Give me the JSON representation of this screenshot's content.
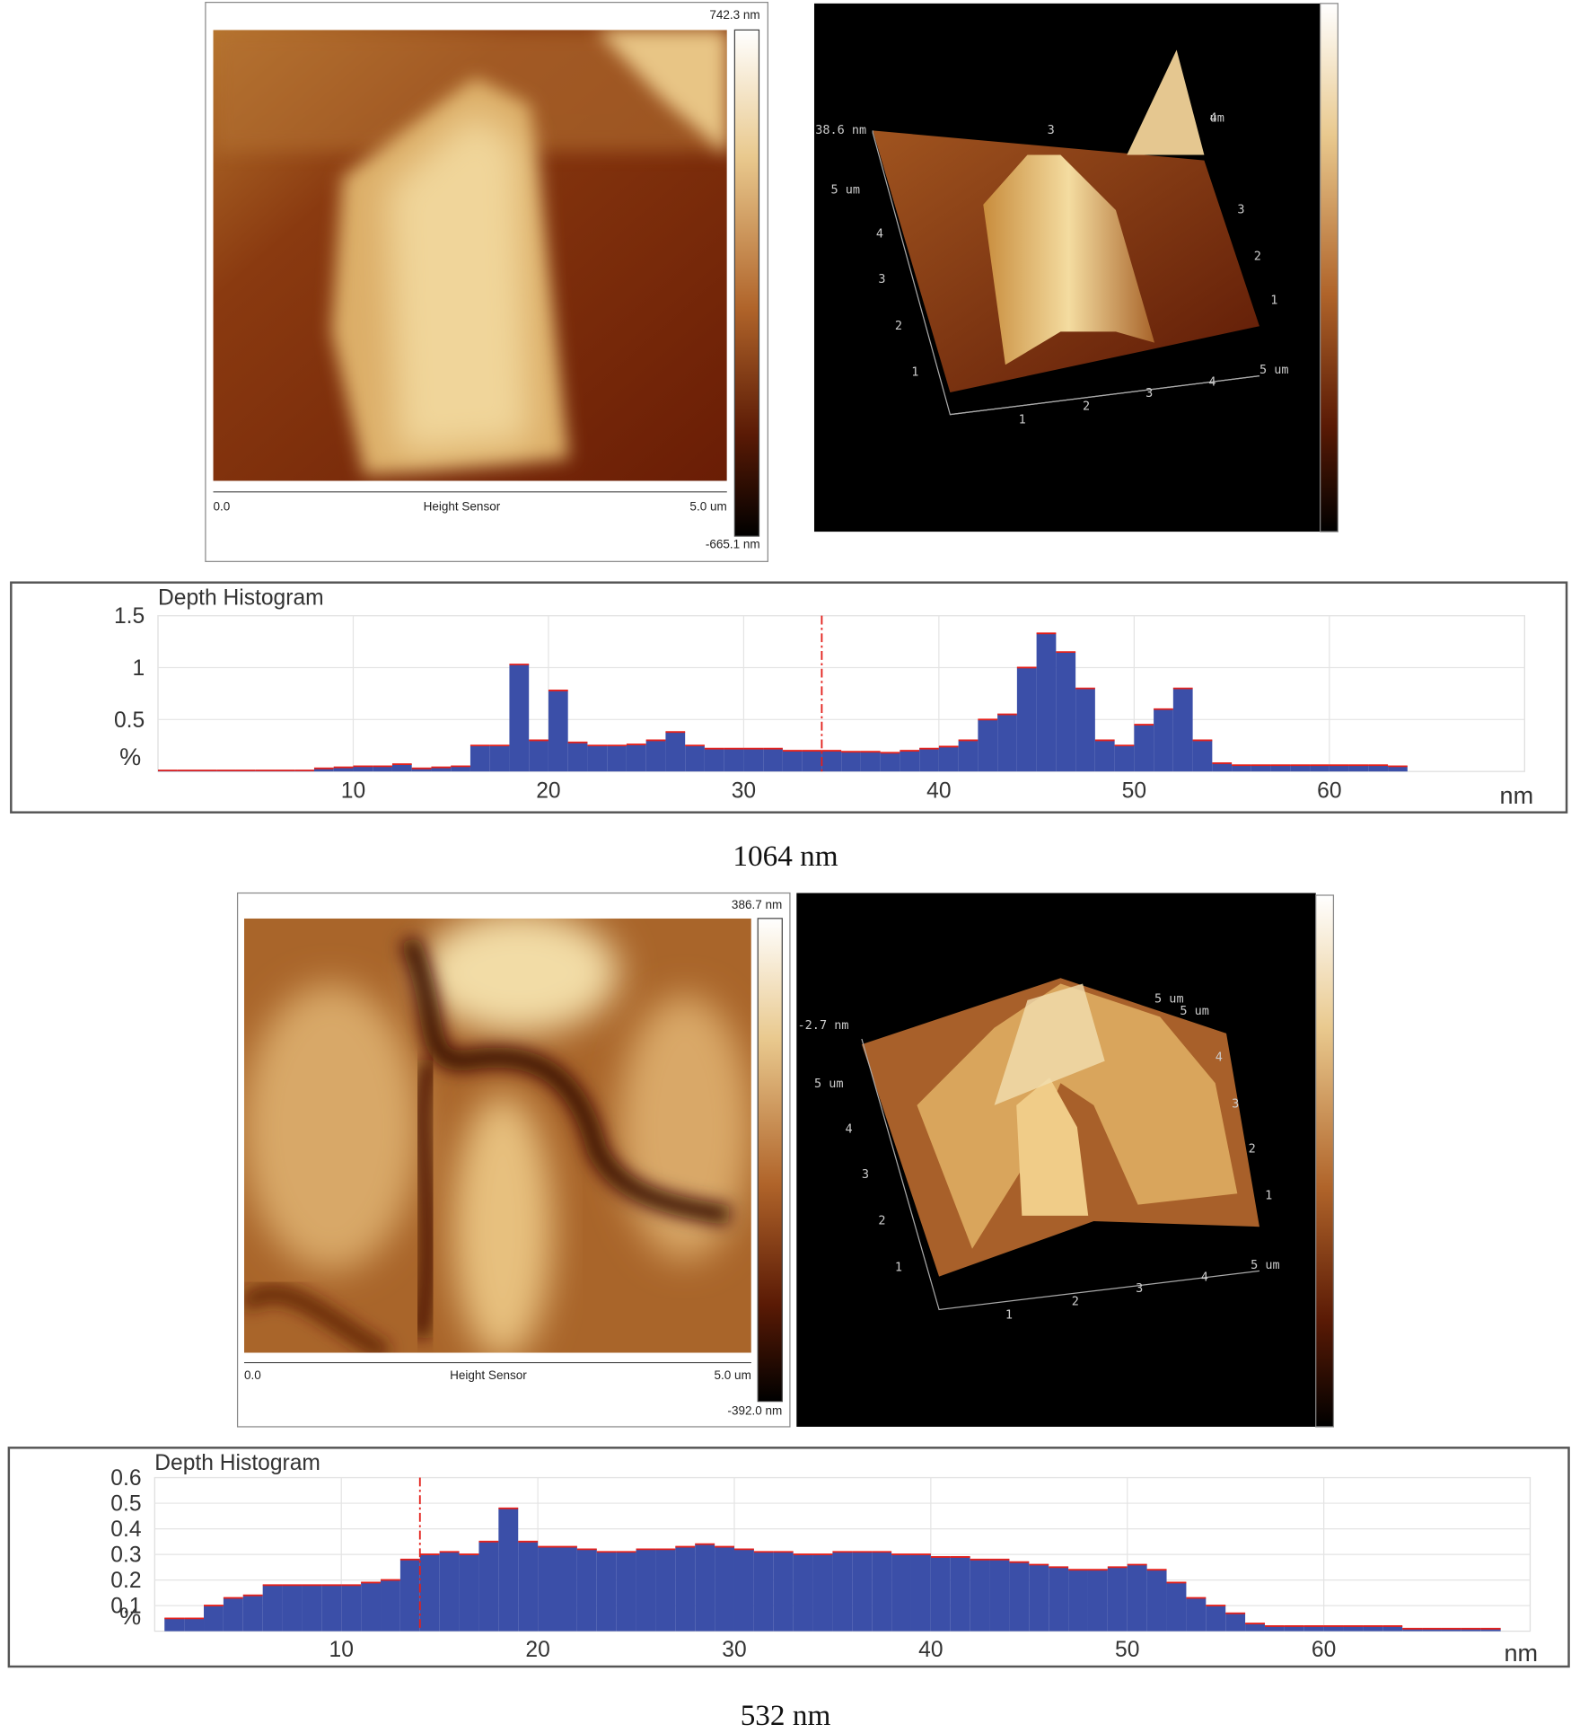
{
  "panels": [
    {
      "image_2d": {
        "scale_max": "742.3 nm",
        "scale_min": "-665.1 nm",
        "x_start": "0.0",
        "x_label": "Height Sensor",
        "x_end": "5.0 um"
      },
      "view_3d": {
        "labels": [
          "38.6 nm",
          "5 um",
          "4",
          "3",
          "2",
          "1",
          "1",
          "2",
          "3",
          "4",
          "5 um",
          "1",
          "2",
          "3",
          "4",
          "um",
          "3"
        ]
      },
      "caption": "1064 nm"
    },
    {
      "image_2d": {
        "scale_max": "386.7 nm",
        "scale_min": "-392.0 nm",
        "x_start": "0.0",
        "x_label": "Height Sensor",
        "x_end": "5.0 um"
      },
      "view_3d": {
        "labels": [
          "-2.7 nm",
          "5 um",
          "4",
          "3",
          "2",
          "1",
          "1",
          "2",
          "3",
          "4",
          "5 um",
          "1",
          "2",
          "3",
          "4",
          "5 um",
          "5 um"
        ]
      },
      "caption": "532 nm"
    }
  ],
  "chart_data": [
    {
      "type": "histogram",
      "title": "Depth Histogram",
      "y_label": "%",
      "x_label": "nm",
      "bins": [
        0,
        1,
        2,
        3,
        4,
        5,
        6,
        7,
        8,
        9,
        10,
        11,
        12,
        13,
        14,
        15,
        16,
        17,
        18,
        19,
        20,
        21,
        22,
        23,
        24,
        25,
        26,
        27,
        28,
        29,
        30,
        31,
        32,
        33,
        34,
        35,
        36,
        37,
        38,
        39,
        40,
        41,
        42,
        43,
        44,
        45,
        46,
        47,
        48,
        49,
        50,
        51,
        52,
        53,
        54,
        55,
        56,
        57,
        58,
        59,
        60,
        61,
        62,
        63,
        64
      ],
      "values": [
        0.01,
        0.01,
        0.01,
        0.01,
        0.01,
        0.01,
        0.01,
        0.01,
        0.03,
        0.04,
        0.05,
        0.05,
        0.07,
        0.03,
        0.04,
        0.05,
        0.25,
        0.25,
        1.03,
        0.3,
        0.78,
        0.28,
        0.25,
        0.25,
        0.26,
        0.3,
        0.38,
        0.25,
        0.22,
        0.22,
        0.22,
        0.22,
        0.2,
        0.2,
        0.2,
        0.19,
        0.19,
        0.18,
        0.2,
        0.22,
        0.24,
        0.3,
        0.5,
        0.55,
        1.0,
        1.33,
        1.15,
        0.8,
        0.3,
        0.25,
        0.45,
        0.6,
        0.8,
        0.3,
        0.08,
        0.06,
        0.06,
        0.06,
        0.06,
        0.06,
        0.06,
        0.06,
        0.06,
        0.05
      ],
      "color": "#3b4fa8",
      "edge_color": "#e3211c",
      "cursor": 34,
      "xlim": [
        0,
        70
      ],
      "ylim": [
        0,
        1.5
      ],
      "xticks": [
        10,
        20,
        30,
        40,
        50,
        60
      ],
      "yticks": [
        0.5,
        1,
        1.5
      ],
      "grid": true
    },
    {
      "type": "histogram",
      "title": "Depth Histogram",
      "y_label": "%",
      "x_label": "nm",
      "bins": [
        1,
        2,
        3,
        4,
        5,
        6,
        7,
        8,
        9,
        10,
        11,
        12,
        13,
        14,
        15,
        16,
        17,
        18,
        19,
        20,
        21,
        22,
        23,
        24,
        25,
        26,
        27,
        28,
        29,
        30,
        31,
        32,
        33,
        34,
        35,
        36,
        37,
        38,
        39,
        40,
        41,
        42,
        43,
        44,
        45,
        46,
        47,
        48,
        49,
        50,
        51,
        52,
        53,
        54,
        55,
        56,
        57,
        58,
        59,
        60,
        61,
        62,
        63,
        64,
        65,
        66,
        67,
        68,
        69
      ],
      "values": [
        0.05,
        0.05,
        0.1,
        0.13,
        0.14,
        0.18,
        0.18,
        0.18,
        0.18,
        0.18,
        0.19,
        0.2,
        0.28,
        0.3,
        0.31,
        0.3,
        0.35,
        0.48,
        0.35,
        0.33,
        0.33,
        0.32,
        0.31,
        0.31,
        0.32,
        0.32,
        0.33,
        0.34,
        0.33,
        0.32,
        0.31,
        0.31,
        0.3,
        0.3,
        0.31,
        0.31,
        0.31,
        0.3,
        0.3,
        0.29,
        0.29,
        0.28,
        0.28,
        0.27,
        0.26,
        0.25,
        0.24,
        0.24,
        0.25,
        0.26,
        0.24,
        0.19,
        0.13,
        0.1,
        0.07,
        0.03,
        0.02,
        0.02,
        0.02,
        0.02,
        0.02,
        0.02,
        0.02,
        0.01,
        0.01,
        0.01,
        0.01,
        0.01
      ],
      "color": "#3b4fa8",
      "edge_color": "#e3211c",
      "cursor": 14,
      "xlim": [
        0.5,
        70.5
      ],
      "ylim": [
        0,
        0.6
      ],
      "xticks": [
        10,
        20,
        30,
        40,
        50,
        60
      ],
      "yticks": [
        0.1,
        0.2,
        0.3,
        0.4,
        0.5,
        0.6
      ],
      "grid": true
    }
  ]
}
